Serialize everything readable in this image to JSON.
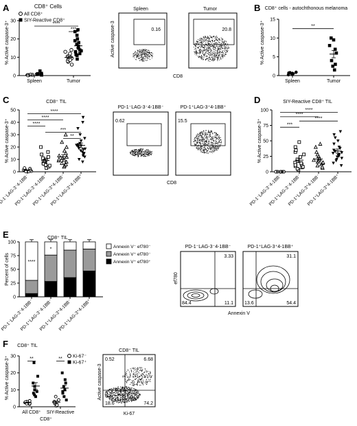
{
  "panels": {
    "A": {
      "letter": "A",
      "scatter": {
        "title": "CD8⁺ Cells",
        "ylabel": "% Active caspase-3⁺",
        "ylim": [
          0,
          30
        ],
        "yticks": [
          "0",
          "10",
          "20",
          "30"
        ],
        "categories": [
          "Spleen",
          "Tumor"
        ],
        "legend": [
          "All CD8⁺",
          "SIY-Reactive CD8⁺"
        ],
        "series": [
          {
            "name": "All CD8⁺",
            "marker": "open-circle",
            "values": {
              "Spleen": [
                0.2,
                0.3,
                0.4,
                0.3,
                0.5,
                0.2
              ],
              "Tumor": [
                6,
                7.5,
                8,
                9,
                9.5,
                10,
                10.5,
                11,
                12,
                13,
                14,
                8.5
              ]
            }
          },
          {
            "name": "SIY-Reactive CD8⁺",
            "marker": "filled-square",
            "values": {
              "Spleen": [
                0.3,
                0.6,
                0.8,
                1,
                1.2,
                2.5,
                0.5
              ],
              "Tumor": [
                9,
                11,
                12,
                13,
                14,
                15,
                16,
                17,
                18,
                19,
                20,
                22,
                24,
                25,
                11.5,
                13.5
              ]
            }
          }
        ],
        "significance": [
          {
            "label": "****",
            "from": "Spleen",
            "to": "Tumor",
            "level": 27
          },
          {
            "label": "***",
            "from": "Tumor",
            "to": "Tumor",
            "level": 24
          }
        ]
      },
      "flow": {
        "ylabel": "Active caspase-3",
        "xlabel": "CD8",
        "plots": [
          {
            "title": "Spleen",
            "value": "0.16"
          },
          {
            "title": "Tumor",
            "value": "20.8"
          }
        ]
      }
    },
    "B": {
      "letter": "B",
      "title": "CD8⁺ cells - autochthonous melanoma",
      "ylabel": "% Active caspase-3⁺",
      "ylim": [
        0,
        15
      ],
      "yticks": [
        "0",
        "5",
        "10",
        "15"
      ],
      "categories": [
        "Spleen",
        "Tumor"
      ],
      "values": {
        "Spleen": [
          0.3,
          0.5,
          0.7,
          0.8,
          0.4,
          0.6,
          0.2,
          0.9
        ],
        "Tumor": [
          1.5,
          2.5,
          4,
          6,
          7,
          8,
          9.5,
          10,
          3
        ]
      },
      "mean": {
        "Spleen": 0.55,
        "Tumor": 6.5
      },
      "significance": [
        {
          "label": "**",
          "level": 12.5
        }
      ]
    },
    "C": {
      "letter": "C",
      "title": "CD8⁺ TIL",
      "ylabel": "% Active caspase-3⁺",
      "ylim": [
        0,
        50
      ],
      "yticks": [
        "0",
        "10",
        "20",
        "30",
        "40",
        "50"
      ],
      "categories": [
        "PD-1⁻LAG-3⁻4-1BB⁻",
        "PD-1⁺LAG-3⁻4-1BB⁻",
        "PD-1⁺LAG-3⁺4-1BB⁻",
        "PD-1⁺LAG-3⁺4-1BB⁺"
      ],
      "markers": [
        "open-circle",
        "open-square",
        "triangle-up",
        "triangle-down"
      ],
      "values": [
        [
          0.3,
          0.5,
          1,
          1.5,
          2,
          2.5,
          3,
          0.8,
          1.2,
          0.2
        ],
        [
          3,
          4,
          5,
          6,
          7,
          8,
          9,
          10,
          11,
          12,
          14,
          16,
          20,
          6.5,
          8.5,
          5.5
        ],
        [
          4,
          5,
          6,
          7,
          8,
          9,
          10,
          11,
          12,
          13,
          15,
          17,
          20,
          24,
          30,
          6,
          9.5
        ],
        [
          8,
          10,
          12,
          14,
          15,
          16,
          17,
          18,
          19,
          20,
          21,
          22,
          23,
          25,
          27,
          30,
          35,
          40,
          44,
          18.5,
          21.5,
          13
        ]
      ],
      "significance": [
        {
          "label": "****",
          "level": 47
        },
        {
          "label": "****",
          "level": 42
        },
        {
          "label": "****",
          "level": 37
        },
        {
          "label": "***",
          "level": 32
        },
        {
          "label": "**",
          "level": 27
        }
      ],
      "flow": {
        "xlabel": "CD8",
        "plots": [
          {
            "title": "PD-1⁻LAG-3⁻4-1BB⁻",
            "value": "0.62"
          },
          {
            "title": "PD-1⁺LAG-3⁺4-1BB⁺",
            "value": "15.5"
          }
        ]
      }
    },
    "D": {
      "letter": "D",
      "title": "SIY-Reactive CD8⁺ TIL",
      "ylabel": "% Active caspase-3⁺",
      "ylim": [
        0,
        100
      ],
      "yticks": [
        "0",
        "25",
        "50",
        "75",
        "100"
      ],
      "categories": [
        "PD-1⁻LAG-3⁻4-1BB⁻",
        "PD-1⁺LAG-3⁻4-1BB⁻",
        "PD-1⁺LAG-3⁺4-1BB⁻",
        "PD-1⁺LAG-3⁺4-1BB⁺"
      ],
      "markers": [
        "open-circle",
        "open-square",
        "triangle-up",
        "triangle-down"
      ],
      "values": [
        [
          0,
          0,
          0,
          0,
          0,
          0,
          0,
          0
        ],
        [
          3,
          5,
          7,
          8,
          10,
          12,
          14,
          15,
          17,
          20,
          24,
          28,
          32,
          35,
          40,
          48,
          9,
          11
        ],
        [
          6,
          8,
          10,
          12,
          14,
          16,
          18,
          20,
          22,
          25,
          28,
          32,
          40,
          45,
          15,
          19
        ],
        [
          10,
          14,
          18,
          20,
          22,
          25,
          28,
          30,
          33,
          35,
          38,
          40,
          45,
          50,
          55,
          60,
          65,
          24,
          27,
          31
        ]
      ],
      "significance": [
        {
          "label": "****",
          "level": 96
        },
        {
          "label": "****",
          "level": 89
        },
        {
          "label": "****",
          "level": 82
        },
        {
          "label": "***",
          "level": 72
        }
      ]
    },
    "E": {
      "letter": "E",
      "title": "CD8⁺ TIL",
      "ylabel": "Percent of cells",
      "ylim": [
        0,
        100
      ],
      "yticks": [
        "0",
        "25",
        "50",
        "75",
        "100"
      ],
      "categories": [
        "PD-1⁻LAG-3⁻4-1BB⁻",
        "PD-1⁺LAG-3⁻4-1BB⁻",
        "PD-1⁺LAG-3⁺4-1BB⁻",
        "PD-1⁺LAG-3⁺4-1BB⁺"
      ],
      "series": [
        {
          "name": "Annexin V⁺ ef780⁺",
          "color": "#000000",
          "values": [
            6,
            28,
            35,
            47
          ]
        },
        {
          "name": "Annexin V⁺ ef780⁻",
          "color": "#9a9a9a",
          "values": [
            24,
            48,
            50,
            40
          ]
        },
        {
          "name": "Annexin V⁻ ef780⁻",
          "color": "#ffffff",
          "values": [
            70,
            24,
            15,
            13
          ]
        }
      ],
      "legend": [
        "Annexin V⁻ ef780⁻",
        "Annexin V⁺ ef780⁻",
        "Annexin V⁺ ef780⁺"
      ],
      "annotations": [
        {
          "label": "****",
          "bar": 0,
          "segment": "top"
        },
        {
          "label": "**",
          "bar": 0,
          "segment": "bottom"
        },
        {
          "label": "*",
          "bar": 1,
          "segment": "top"
        },
        {
          "label": "**",
          "bar": 1,
          "segment": "bottom"
        }
      ],
      "flow": {
        "ylabel": "ef780",
        "xlabel": "Annexin V",
        "plots": [
          {
            "title": "PD-1⁻LAG-3⁻4-1BB⁻",
            "q_ul": "",
            "q_ur": "3.33",
            "q_ll": "84.4",
            "q_lr": "11.1"
          },
          {
            "title": "PD-1⁺LAG-3⁺4-1BB⁺",
            "q_ul": "",
            "q_ur": "31.1",
            "q_ll": "13.6",
            "q_lr": "54.4"
          }
        ]
      }
    },
    "F": {
      "letter": "F",
      "title": "CD8⁺ TIL",
      "ylabel": "% Active caspase-3⁺",
      "xlabel": "CD8⁺",
      "ylim": [
        0,
        30
      ],
      "yticks": [
        "0",
        "10",
        "20",
        "30"
      ],
      "categories": [
        "All CD8⁺",
        "SIY-Reactive"
      ],
      "legend": [
        "Ki-67⁻",
        "Ki-67⁺"
      ],
      "series": [
        {
          "name": "Ki-67⁻",
          "marker": "open-circle",
          "values": {
            "All CD8⁺": [
              1.5,
              2,
              2.5,
              3,
              3.5,
              2.8,
              1.8
            ],
            "SIY-Reactive": [
              0.5,
              1,
              2,
              3,
              4,
              6,
              2.5
            ]
          }
        },
        {
          "name": "Ki-67⁺",
          "marker": "filled-square",
          "values": {
            "All CD8⁺": [
              6,
              7,
              8,
              9,
              10,
              12,
              14,
              18,
              26
            ],
            "SIY-Reactive": [
              4,
              6,
              8,
              10,
              12,
              14,
              16,
              20,
              9
            ]
          }
        }
      ],
      "significance": [
        {
          "label": "**",
          "level": 27
        },
        {
          "label": "**",
          "level": 27
        }
      ],
      "flow": {
        "title": "CD8⁺ TIL",
        "ylabel": "Active caspase-3",
        "xlabel": "Ki-67",
        "q_ul": "0.52",
        "q_ur": "6.68",
        "q_ll": "18.6",
        "q_lr": "74.2"
      }
    }
  }
}
